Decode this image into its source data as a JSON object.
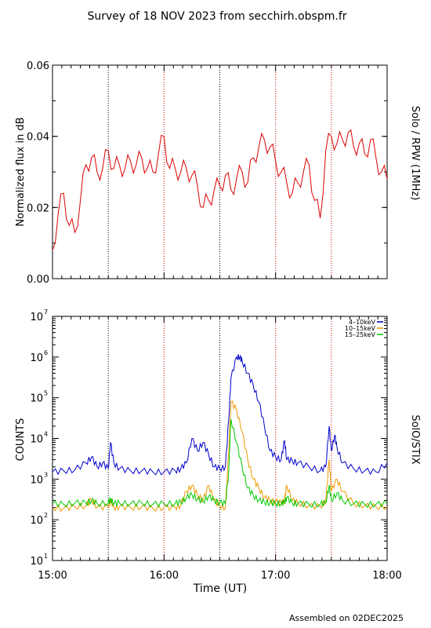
{
  "header": {
    "title": "Survey of 18 NOV 2023 from secchirh.obspm.fr"
  },
  "footer": {
    "assembled": "Assembled on 02DEC2025"
  },
  "colors": {
    "rpw": "#dd0000",
    "s1": "#0000cc",
    "s2": "#ee9900",
    "s3": "#00cc00",
    "vline_red": "#cc0000"
  },
  "chart_data": [
    {
      "type": "line",
      "instrument_label": "Solo / RPW (1MHz)",
      "ylabel": "Normalized flux in dB",
      "ylim": [
        0.0,
        0.06
      ],
      "yticks": [
        "0.00",
        "0.02",
        "0.04",
        "0.06"
      ],
      "xlim": [
        "15:00",
        "18:00"
      ],
      "series": [
        {
          "color": "#dd0000",
          "x": [
            15.0,
            15.05,
            15.1,
            15.15,
            15.2,
            15.25,
            15.3,
            15.35,
            15.4,
            15.45,
            15.5,
            15.55,
            15.6,
            15.65,
            15.7,
            15.75,
            15.8,
            15.85,
            15.9,
            15.95,
            16.0,
            16.05,
            16.1,
            16.15,
            16.2,
            16.25,
            16.3,
            16.35,
            16.4,
            16.45,
            16.5,
            16.55,
            16.6,
            16.65,
            16.7,
            16.75,
            16.8,
            16.85,
            16.9,
            16.95,
            17.0,
            17.05,
            17.1,
            17.15,
            17.2,
            17.25,
            17.3,
            17.35,
            17.4,
            17.45,
            17.5,
            17.55,
            17.6,
            17.65,
            17.7,
            17.75,
            17.8,
            17.85,
            17.9,
            17.95,
            18.0
          ],
          "y": [
            0.008,
            0.018,
            0.024,
            0.015,
            0.013,
            0.022,
            0.032,
            0.034,
            0.03,
            0.031,
            0.036,
            0.031,
            0.032,
            0.031,
            0.033,
            0.032,
            0.034,
            0.031,
            0.03,
            0.035,
            0.04,
            0.031,
            0.031,
            0.03,
            0.031,
            0.029,
            0.026,
            0.02,
            0.022,
            0.025,
            0.026,
            0.029,
            0.025,
            0.028,
            0.03,
            0.027,
            0.034,
            0.037,
            0.039,
            0.037,
            0.033,
            0.03,
            0.027,
            0.024,
            0.027,
            0.03,
            0.032,
            0.022,
            0.017,
            0.036,
            0.04,
            0.038,
            0.039,
            0.041,
            0.037,
            0.038,
            0.035,
            0.039,
            0.034,
            0.03,
            0.028
          ]
        }
      ]
    },
    {
      "type": "line",
      "instrument_label": "SolO/STIX",
      "ylabel": "COUNTS",
      "xlabel": "Time (UT)",
      "yscale": "log",
      "ylim": [
        10,
        10000000
      ],
      "yticks": [
        {
          "b": "10",
          "e": "1"
        },
        {
          "b": "10",
          "e": "2"
        },
        {
          "b": "10",
          "e": "3"
        },
        {
          "b": "10",
          "e": "4"
        },
        {
          "b": "10",
          "e": "5"
        },
        {
          "b": "10",
          "e": "6"
        },
        {
          "b": "10",
          "e": "7"
        }
      ],
      "xlim": [
        "15:00",
        "18:00"
      ],
      "xticks": [
        "15:00",
        "16:00",
        "17:00",
        "18:00"
      ],
      "vlines": [
        15.5,
        16.0,
        16.5,
        17.0,
        17.5
      ],
      "legend": "top-right",
      "series": [
        {
          "name": "4–10keV",
          "color": "#0000cc",
          "x": [
            15.0,
            15.1,
            15.2,
            15.3,
            15.35,
            15.4,
            15.45,
            15.5,
            15.52,
            15.55,
            15.6,
            15.7,
            15.8,
            15.9,
            16.0,
            16.1,
            16.15,
            16.2,
            16.25,
            16.3,
            16.35,
            16.4,
            16.45,
            16.5,
            16.55,
            16.58,
            16.6,
            16.65,
            16.68,
            16.7,
            16.75,
            16.8,
            16.85,
            16.9,
            16.95,
            17.0,
            17.05,
            17.08,
            17.1,
            17.15,
            17.2,
            17.3,
            17.4,
            17.45,
            17.48,
            17.5,
            17.53,
            17.55,
            17.6,
            17.7,
            17.8,
            17.9,
            18.0
          ],
          "y": [
            1500,
            1600,
            1700,
            2500,
            3500,
            2000,
            2500,
            1800,
            8000,
            2500,
            1800,
            1600,
            1600,
            1500,
            1500,
            1600,
            1800,
            2500,
            10000,
            5000,
            8000,
            4000,
            2000,
            1800,
            2000,
            30000,
            300000,
            1000000,
            1000000,
            800000,
            400000,
            200000,
            80000,
            20000,
            5000,
            3500,
            3000,
            9000,
            3000,
            2800,
            2500,
            2000,
            1600,
            2000,
            20000,
            5000,
            12000,
            6000,
            2500,
            1800,
            1600,
            1500,
            2500
          ]
        },
        {
          "name": "10–15keV",
          "color": "#ee9900",
          "x": [
            15.0,
            15.1,
            15.2,
            15.3,
            15.35,
            15.4,
            15.5,
            15.52,
            15.55,
            15.6,
            15.7,
            15.8,
            15.9,
            16.0,
            16.1,
            16.15,
            16.2,
            16.25,
            16.3,
            16.35,
            16.4,
            16.45,
            16.5,
            16.55,
            16.58,
            16.6,
            16.65,
            16.7,
            16.75,
            16.8,
            16.85,
            16.9,
            16.95,
            17.0,
            17.05,
            17.08,
            17.1,
            17.15,
            17.2,
            17.3,
            17.4,
            17.45,
            17.48,
            17.5,
            17.55,
            17.6,
            17.7,
            17.8,
            17.9,
            18.0
          ],
          "y": [
            200,
            190,
            210,
            220,
            320,
            200,
            210,
            300,
            200,
            210,
            200,
            210,
            190,
            200,
            200,
            230,
            500,
            700,
            400,
            300,
            700,
            300,
            220,
            200,
            5000,
            80000,
            50000,
            15000,
            3000,
            1000,
            600,
            350,
            300,
            280,
            260,
            300,
            700,
            300,
            260,
            220,
            210,
            300,
            3000,
            500,
            1000,
            500,
            250,
            220,
            210,
            210
          ]
        },
        {
          "name": "15–25keV",
          "color": "#00cc00",
          "x": [
            15.0,
            15.1,
            15.2,
            15.3,
            15.35,
            15.4,
            15.5,
            15.52,
            15.55,
            15.6,
            15.7,
            15.8,
            15.9,
            16.0,
            16.1,
            16.15,
            16.2,
            16.25,
            16.3,
            16.35,
            16.4,
            16.45,
            16.5,
            16.55,
            16.58,
            16.6,
            16.65,
            16.7,
            16.75,
            16.8,
            16.85,
            16.9,
            16.95,
            17.0,
            17.05,
            17.08,
            17.1,
            17.15,
            17.2,
            17.3,
            17.4,
            17.45,
            17.48,
            17.5,
            17.55,
            17.6,
            17.7,
            17.8,
            17.9,
            18.0
          ],
          "y": [
            250,
            240,
            260,
            260,
            300,
            250,
            260,
            320,
            250,
            260,
            250,
            260,
            240,
            250,
            250,
            270,
            350,
            420,
            320,
            280,
            380,
            300,
            260,
            250,
            1500,
            30000,
            8000,
            2000,
            600,
            400,
            300,
            270,
            260,
            250,
            250,
            270,
            350,
            260,
            250,
            240,
            240,
            260,
            700,
            300,
            450,
            300,
            250,
            240,
            240,
            250
          ]
        }
      ]
    }
  ]
}
